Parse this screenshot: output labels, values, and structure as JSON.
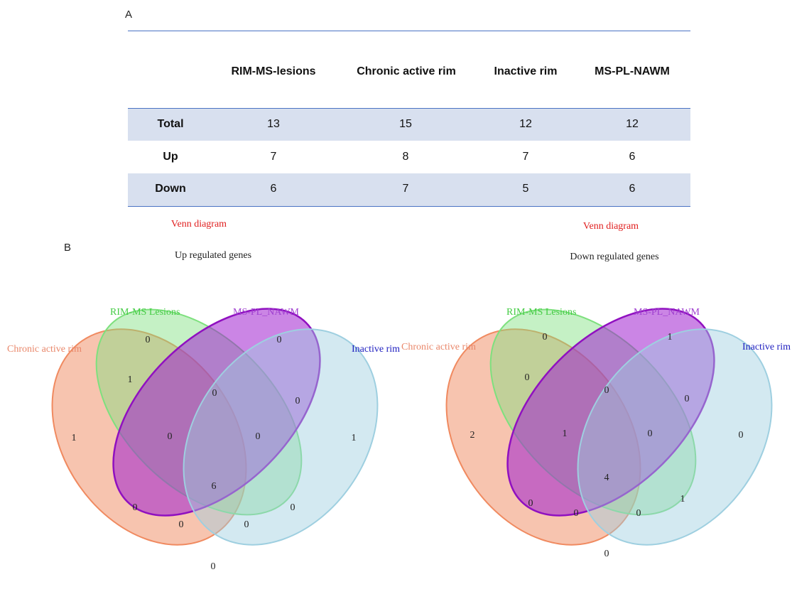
{
  "panel_a_label": "A",
  "panel_b_label": "B",
  "table": {
    "headers": [
      "",
      "RIM-MS-lesions",
      "Chronic active rim",
      "Inactive rim",
      "MS-PL-NAWM"
    ],
    "rows": [
      {
        "label": "Total",
        "values": [
          "13",
          "15",
          "12",
          "12"
        ]
      },
      {
        "label": "Up",
        "values": [
          "7",
          "8",
          "7",
          "6"
        ]
      },
      {
        "label": "Down",
        "values": [
          "6",
          "7",
          "5",
          "6"
        ]
      }
    ]
  },
  "venn_up": {
    "title": "Venn diagram",
    "subtitle": "Up regulated genes",
    "set_labels": {
      "chronic": "Chronic active rim",
      "rim": "RIM-MS Lesions",
      "nawm": "MS-PL_NAWM",
      "inactive": "Inactive rim"
    },
    "counts": {
      "chronic_only": "1",
      "rim_only": "0",
      "nawm_only": "0",
      "inactive_only": "1",
      "chronic_rim": "1",
      "rim_nawm": "0",
      "nawm_inactive": "0",
      "chronic_rim_nawm": "0",
      "rim_nawm_inactive": "0",
      "all_four": "6",
      "chronic_nawm": "0",
      "rim_inactive": "0",
      "chronic_nawm_inactive": "0",
      "chronic_rim_inactive": "0",
      "chronic_inactive": "0"
    }
  },
  "venn_down": {
    "title": "Venn diagram",
    "subtitle": "Down regulated genes",
    "set_labels": {
      "chronic": "Chronic active rim",
      "rim": "RIM-MS Lesions",
      "nawm": "MS-PL_NAWM",
      "inactive": "Inactive rim"
    },
    "counts": {
      "chronic_only": "2",
      "rim_only": "0",
      "nawm_only": "1",
      "inactive_only": "0",
      "chronic_rim": "0",
      "rim_nawm": "0",
      "nawm_inactive": "0",
      "chronic_rim_nawm": "1",
      "rim_nawm_inactive": "0",
      "all_four": "4",
      "chronic_nawm": "0",
      "rim_inactive": "1",
      "chronic_nawm_inactive": "0",
      "chronic_rim_inactive": "0",
      "chronic_inactive": "0"
    }
  },
  "colors": {
    "chronic": "#f08a60",
    "rim": "#7ee07e",
    "nawm": "#a020d0",
    "inactive": "#9ecfe0",
    "chronic_label": "#e9876a",
    "rim_label": "#44cc44",
    "nawm_label": "#a040d0",
    "inactive_label": "#2020c0",
    "title_red": "#e02020",
    "table_band": "#d8e0ef",
    "table_rule": "#4a73c4"
  }
}
